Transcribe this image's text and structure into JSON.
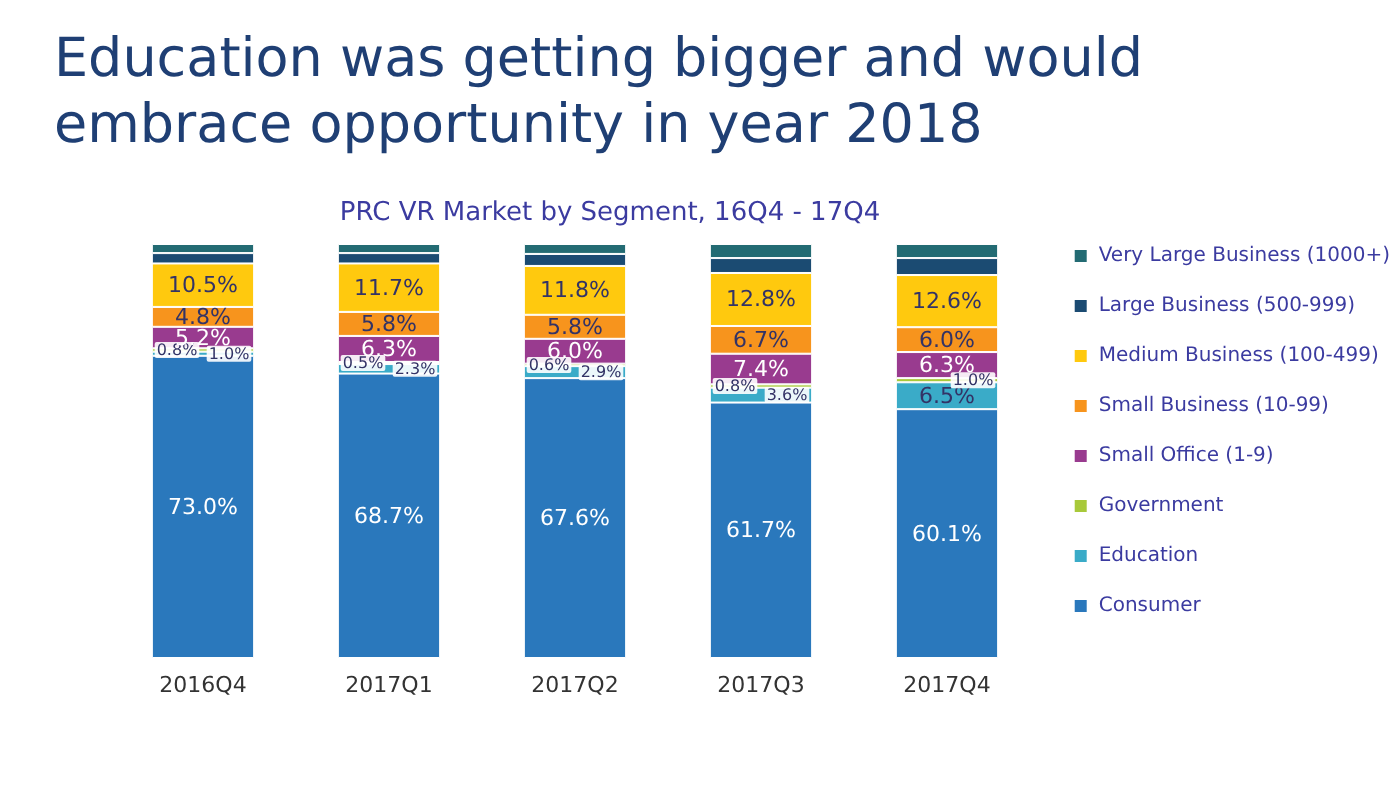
{
  "chart_data": {
    "type": "bar",
    "title": "Education was getting bigger and would embrace opportunity in year 2018",
    "subtitle": "PRC VR Market by Segment, 16Q4 - 17Q4",
    "categories": [
      "2016Q4",
      "2017Q1",
      "2017Q2",
      "2017Q3",
      "2017Q4"
    ],
    "stacked": true,
    "ylim": [
      0,
      100
    ],
    "tick_labels": "x",
    "legend": "right",
    "series": [
      {
        "name": "Consumer",
        "color": "#2a78bc",
        "values": [
          73.0,
          68.7,
          67.6,
          61.7,
          60.1
        ],
        "value_labels": [
          "73.0%",
          "68.7%",
          "67.6%",
          "61.7%",
          "60.1%"
        ]
      },
      {
        "name": "Education",
        "color": "#3aabc8",
        "values": [
          1.0,
          2.3,
          2.9,
          3.6,
          6.5
        ],
        "value_labels": [
          "1.0%",
          "2.3%",
          "2.9%",
          "3.6%",
          "6.5%"
        ]
      },
      {
        "name": "Government",
        "color": "#a8c93a",
        "values": [
          0.8,
          0.5,
          0.6,
          0.8,
          1.0
        ],
        "value_labels": [
          "0.8%",
          "0.5%",
          "0.6%",
          "0.8%",
          "1.0%"
        ]
      },
      {
        "name": "Small Office (1-9)",
        "color": "#993b8f",
        "values": [
          5.2,
          6.3,
          6.0,
          7.4,
          6.3
        ],
        "value_labels": [
          "5.2%",
          "6.3%",
          "6.0%",
          "7.4%",
          "6.3%"
        ]
      },
      {
        "name": "Small Business (10-99)",
        "color": "#f7941d",
        "values": [
          4.8,
          5.8,
          5.8,
          6.7,
          6.0
        ],
        "value_labels": [
          "4.8%",
          "5.8%",
          "5.8%",
          "6.7%",
          "6.0%"
        ]
      },
      {
        "name": "Medium Business (100-499)",
        "color": "#ffc90e",
        "values": [
          10.5,
          11.7,
          11.8,
          12.8,
          12.6
        ],
        "value_labels": [
          "10.5%",
          "11.7%",
          "11.8%",
          "12.8%",
          "12.6%"
        ]
      },
      {
        "name": "Large Business (500-999)",
        "color": "#1b4b72",
        "values": [
          2.5,
          2.5,
          2.9,
          3.6,
          4.1
        ]
      },
      {
        "name": "Very Large Business (1000+)",
        "color": "#236b73",
        "values": [
          2.2,
          2.2,
          2.4,
          3.4,
          3.4
        ]
      }
    ]
  }
}
